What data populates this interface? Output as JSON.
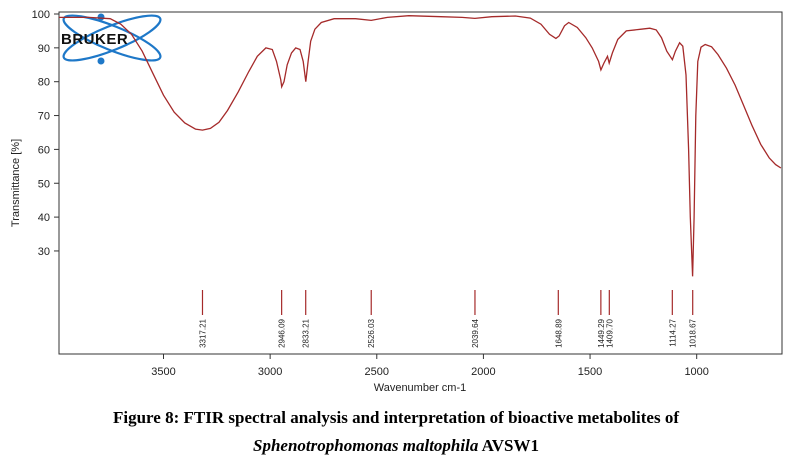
{
  "chart_data": {
    "type": "line",
    "xlabel": "Wavenumber cm-1",
    "ylabel": "Transmittance [%]",
    "xlim": [
      3990,
      600
    ],
    "ylim": [
      0,
      100
    ],
    "x_ticks": [
      3500,
      3000,
      2500,
      2000,
      1500,
      1000
    ],
    "y_ticks": [
      30,
      40,
      50,
      60,
      70,
      80,
      90,
      100
    ],
    "grid": false,
    "series": [
      {
        "color": "#a52a2a",
        "points": [
          [
            3990,
            99
          ],
          [
            3850,
            99
          ],
          [
            3750,
            98.6
          ],
          [
            3700,
            97
          ],
          [
            3650,
            94
          ],
          [
            3600,
            89
          ],
          [
            3550,
            82.5
          ],
          [
            3500,
            76
          ],
          [
            3450,
            71
          ],
          [
            3400,
            67.8
          ],
          [
            3350,
            66
          ],
          [
            3317,
            65.7
          ],
          [
            3280,
            66.2
          ],
          [
            3240,
            68
          ],
          [
            3200,
            71.5
          ],
          [
            3150,
            77
          ],
          [
            3100,
            83
          ],
          [
            3060,
            87.5
          ],
          [
            3020,
            90
          ],
          [
            2990,
            89.5
          ],
          [
            2970,
            86
          ],
          [
            2950,
            80.5
          ],
          [
            2946,
            78.5
          ],
          [
            2935,
            80
          ],
          [
            2920,
            85
          ],
          [
            2900,
            88.5
          ],
          [
            2880,
            90
          ],
          [
            2860,
            89.5
          ],
          [
            2845,
            86
          ],
          [
            2833,
            80
          ],
          [
            2822,
            86
          ],
          [
            2810,
            92
          ],
          [
            2790,
            95.5
          ],
          [
            2760,
            97.5
          ],
          [
            2700,
            98.6
          ],
          [
            2600,
            98.6
          ],
          [
            2526,
            98.1
          ],
          [
            2450,
            99
          ],
          [
            2350,
            99.5
          ],
          [
            2200,
            99.2
          ],
          [
            2100,
            99
          ],
          [
            2040,
            98.7
          ],
          [
            1960,
            99.2
          ],
          [
            1850,
            99.4
          ],
          [
            1780,
            98.8
          ],
          [
            1730,
            97
          ],
          [
            1690,
            94
          ],
          [
            1660,
            92.8
          ],
          [
            1645,
            93.5
          ],
          [
            1620,
            96.5
          ],
          [
            1600,
            97.5
          ],
          [
            1560,
            96
          ],
          [
            1520,
            93
          ],
          [
            1490,
            90
          ],
          [
            1460,
            86
          ],
          [
            1449,
            83.5
          ],
          [
            1435,
            85.5
          ],
          [
            1418,
            87.5
          ],
          [
            1410,
            85.5
          ],
          [
            1395,
            88.5
          ],
          [
            1370,
            92.5
          ],
          [
            1330,
            95
          ],
          [
            1260,
            95.5
          ],
          [
            1220,
            95.8
          ],
          [
            1190,
            95.3
          ],
          [
            1165,
            93
          ],
          [
            1140,
            89
          ],
          [
            1114,
            86.5
          ],
          [
            1100,
            89
          ],
          [
            1080,
            91.5
          ],
          [
            1065,
            90.5
          ],
          [
            1050,
            82
          ],
          [
            1038,
            60
          ],
          [
            1030,
            40
          ],
          [
            1019,
            22.5
          ],
          [
            1012,
            40
          ],
          [
            1004,
            70
          ],
          [
            995,
            86
          ],
          [
            980,
            90.2
          ],
          [
            960,
            91
          ],
          [
            930,
            90.3
          ],
          [
            900,
            88
          ],
          [
            860,
            84
          ],
          [
            820,
            79
          ],
          [
            780,
            73
          ],
          [
            740,
            67
          ],
          [
            700,
            61.5
          ],
          [
            660,
            57.5
          ],
          [
            630,
            55.5
          ],
          [
            605,
            54.5
          ]
        ]
      }
    ],
    "peaks": [
      {
        "x": 3317.21,
        "label": "3317.21"
      },
      {
        "x": 2946.09,
        "label": "2946.09"
      },
      {
        "x": 2833.21,
        "label": "2833.21"
      },
      {
        "x": 2526.03,
        "label": "2526.03"
      },
      {
        "x": 2039.64,
        "label": "2039.64"
      },
      {
        "x": 1648.89,
        "label": "1648.89"
      },
      {
        "x": 1449.29,
        "label": "1449.29"
      },
      {
        "x": 1409.7,
        "label": "1409.70"
      },
      {
        "x": 1114.27,
        "label": "1114.27"
      },
      {
        "x": 1018.67,
        "label": "1018.67"
      }
    ]
  },
  "logo": {
    "text": "BRUKER",
    "color": "#1e78c8"
  },
  "caption": {
    "line1": "Figure 8: FTIR spectral analysis and interpretation of bioactive metabolites of",
    "species": "Sphenotrophomonas maltophila",
    "strain": " AVSW1"
  }
}
